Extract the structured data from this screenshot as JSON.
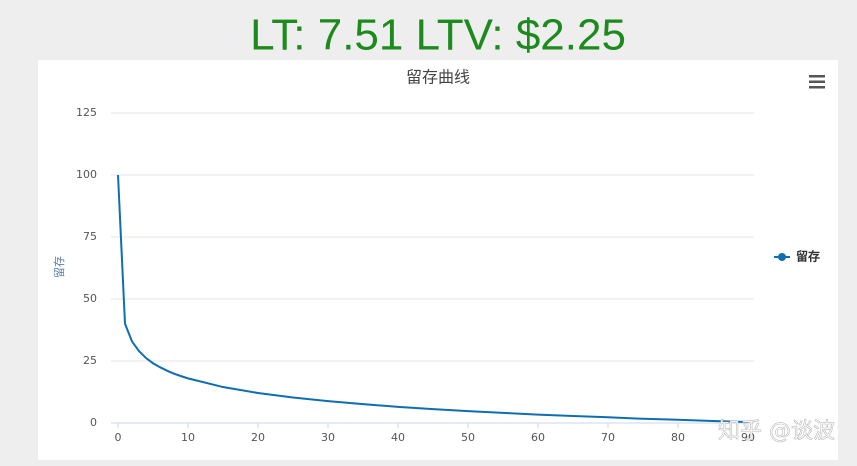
{
  "header": "LT: 7.51 LTV: $2.25",
  "watermark": "知乎 @谈波",
  "chart_data": {
    "type": "line",
    "title": "留存曲线",
    "y_label": "留存",
    "x": [
      0,
      1,
      2,
      3,
      4,
      5,
      6,
      7,
      8,
      9,
      10,
      15,
      20,
      25,
      30,
      35,
      40,
      45,
      50,
      55,
      60,
      65,
      70,
      75,
      80,
      85,
      90
    ],
    "series": [
      {
        "name": "留存",
        "color": "#0e6eb0",
        "values": [
          100,
          40,
          32.9,
          29.0,
          26.2,
          24.1,
          22.5,
          21.1,
          19.9,
          18.9,
          18.0,
          14.5,
          12.1,
          10.3,
          8.8,
          7.6,
          6.5,
          5.6,
          4.8,
          4.1,
          3.4,
          2.8,
          2.3,
          1.7,
          1.3,
          0.8,
          0.4
        ]
      }
    ],
    "xlim": [
      0,
      90
    ],
    "xticks": [
      0,
      10,
      20,
      30,
      40,
      50,
      60,
      70,
      80,
      90
    ],
    "ylim": [
      0,
      125
    ],
    "yticks": [
      0,
      25,
      50,
      75,
      100,
      125
    ],
    "grid": true,
    "legend": "right"
  }
}
